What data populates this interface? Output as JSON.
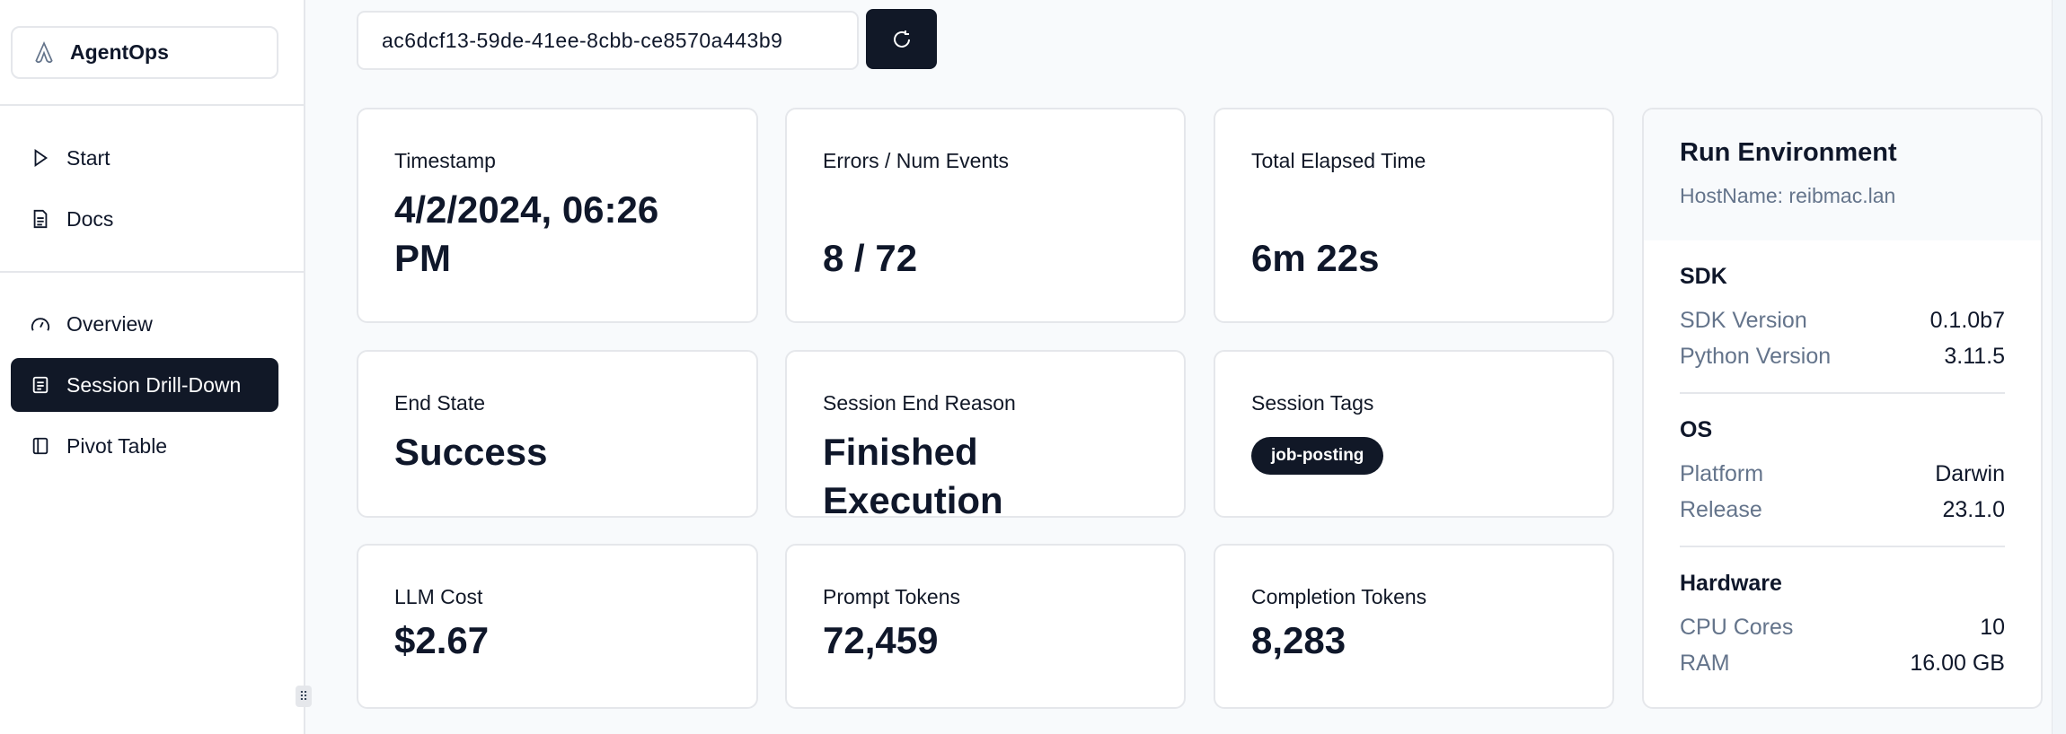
{
  "sidebar": {
    "brand": "AgentOps",
    "items": [
      {
        "label": "Start",
        "icon": "play-icon"
      },
      {
        "label": "Docs",
        "icon": "document-icon"
      },
      {
        "label": "Overview",
        "icon": "gauge-icon"
      },
      {
        "label": "Session Drill-Down",
        "icon": "list-icon",
        "active": true
      },
      {
        "label": "Pivot Table",
        "icon": "sidebar-panel-icon"
      }
    ]
  },
  "session": {
    "id": "ac6dcf13-59de-41ee-8cbb-ce8570a443b9",
    "refresh_icon": "refresh-icon"
  },
  "cards": [
    {
      "label": "Timestamp",
      "value": "4/2/2024, 06:26 PM"
    },
    {
      "label": "Errors / Num Events",
      "value": "8 / 72"
    },
    {
      "label": "Total Elapsed Time",
      "value": "6m 22s"
    },
    {
      "label": "End State",
      "value": "Success"
    },
    {
      "label": "Session End Reason",
      "value": "Finished Execution"
    },
    {
      "label": "Session Tags",
      "tags": [
        "job-posting"
      ]
    },
    {
      "label": "LLM Cost",
      "value": "$2.67"
    },
    {
      "label": "Prompt Tokens",
      "value": "72,459"
    },
    {
      "label": "Completion Tokens",
      "value": "8,283"
    }
  ],
  "environment": {
    "title": "Run Environment",
    "hostname": "HostName: reibmac.lan",
    "sections": [
      {
        "title": "SDK",
        "rows": [
          {
            "k": "SDK Version",
            "v": "0.1.0b7"
          },
          {
            "k": "Python Version",
            "v": "3.11.5"
          }
        ]
      },
      {
        "title": "OS",
        "rows": [
          {
            "k": "Platform",
            "v": "Darwin"
          },
          {
            "k": "Release",
            "v": "23.1.0"
          }
        ]
      },
      {
        "title": "Hardware",
        "rows": [
          {
            "k": "CPU Cores",
            "v": "10"
          },
          {
            "k": "RAM",
            "v": "16.00 GB"
          }
        ]
      }
    ]
  },
  "colors": {
    "primary": "#111827",
    "muted": "#64748b",
    "border": "#e5e7eb",
    "background": "#f8fafc"
  }
}
